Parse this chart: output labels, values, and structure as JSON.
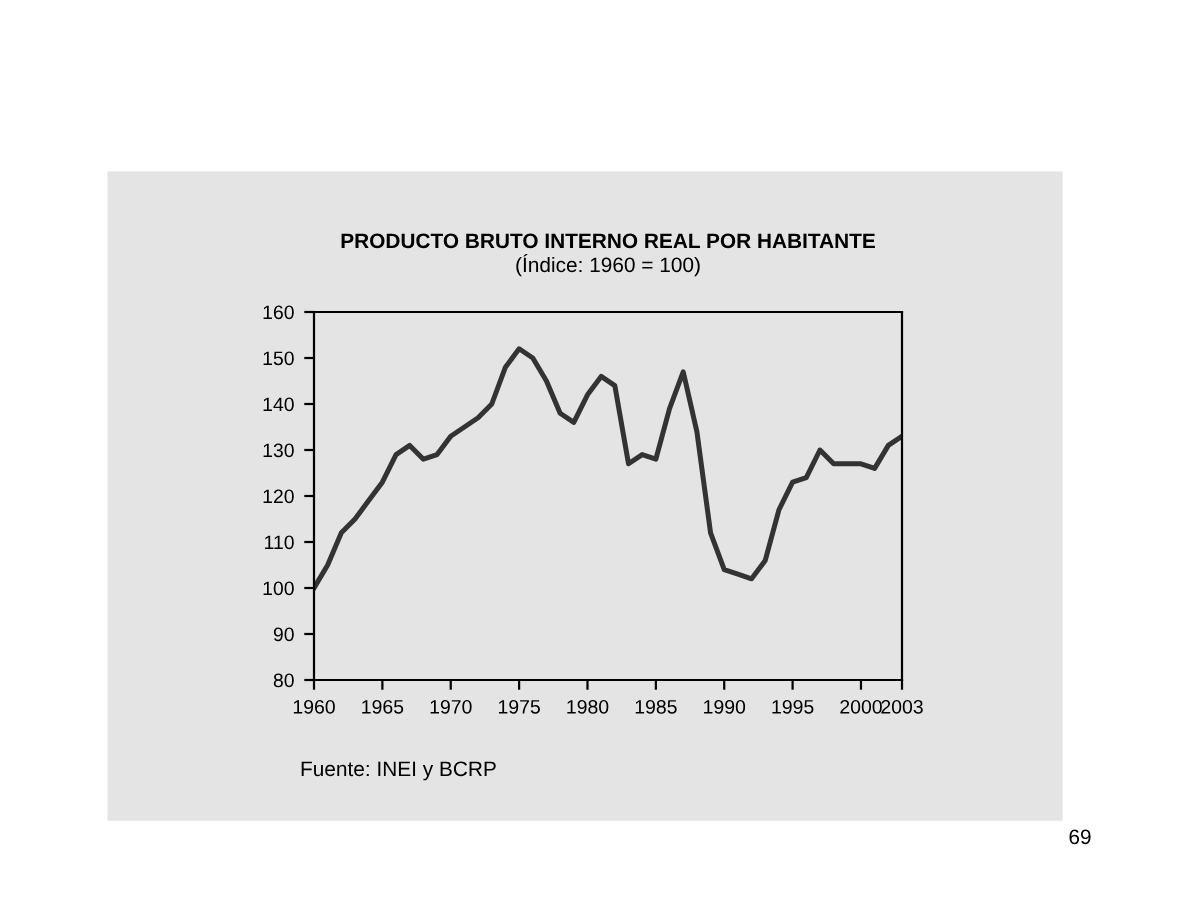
{
  "chart_data": {
    "type": "line",
    "title": "PRODUCTO BRUTO INTERNO REAL POR HABITANTE",
    "subtitle": "(Índice: 1960 = 100)",
    "x": [
      1960,
      1961,
      1962,
      1963,
      1964,
      1965,
      1966,
      1967,
      1968,
      1969,
      1970,
      1971,
      1972,
      1973,
      1974,
      1975,
      1976,
      1977,
      1978,
      1979,
      1980,
      1981,
      1982,
      1983,
      1984,
      1985,
      1986,
      1987,
      1988,
      1989,
      1990,
      1991,
      1992,
      1993,
      1994,
      1995,
      1996,
      1997,
      1998,
      1999,
      2000,
      2001,
      2002,
      2003
    ],
    "series": [
      {
        "color": "#333333",
        "values": [
          100,
          105,
          112,
          115,
          119,
          123,
          129,
          131,
          128,
          129,
          133,
          135,
          137,
          140,
          148,
          152,
          150,
          145,
          138,
          136,
          142,
          146,
          144,
          127,
          129,
          128,
          139,
          147,
          134,
          112,
          104,
          103,
          102,
          106,
          117,
          123,
          124,
          130,
          127,
          127,
          127,
          126,
          131,
          133
        ]
      }
    ],
    "xlim": [
      1960,
      2003
    ],
    "xticks": [
      1960,
      1965,
      1970,
      1975,
      1980,
      1985,
      1990,
      1995,
      2000,
      2003
    ],
    "ylim": [
      80,
      160
    ],
    "yticks": [
      80,
      90,
      100,
      110,
      120,
      130,
      140,
      150,
      160
    ],
    "grid": false,
    "marker": "none",
    "line_style": "solid",
    "annotations": [
      "Fuente: INEI y BCRP",
      "69"
    ]
  }
}
